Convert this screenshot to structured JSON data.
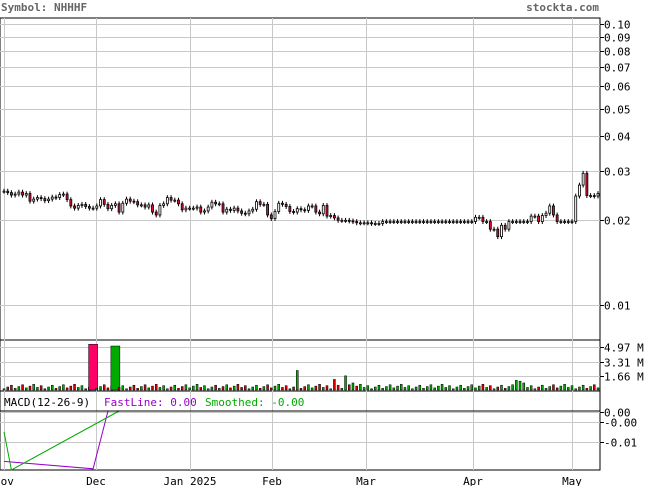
{
  "header": {
    "symbol_label": "Symbol: NHHHF",
    "site": "stockta.com"
  },
  "colors": {
    "grid": "#c8c8c8",
    "up": "#00aa00",
    "down": "#dd0000",
    "candle_up_fill": "#ffffff",
    "candle_down_fill": "#dd1133",
    "macd_hist": "#ff0066",
    "fast": "#9900cc",
    "smoothed": "#00aa00",
    "header_text": "#666666"
  },
  "macd_legend": {
    "label": "MACD(12-26-9)",
    "fast": "FastLine: 0.00",
    "smoothed": "Smoothed: -0.00"
  },
  "chart_data": [
    {
      "type": "candlestick",
      "title": "Symbol: NHHHF",
      "yscale": "log",
      "ylim": [
        0.0075,
        0.105
      ],
      "y_ticks": [
        "0.10",
        "0.09",
        "0.08",
        "0.07",
        "0.06",
        "0.05",
        "0.04",
        "0.03",
        "0.02",
        "0.01"
      ],
      "y_tick_values": [
        0.1,
        0.09,
        0.08,
        0.07,
        0.06,
        0.05,
        0.04,
        0.03,
        0.02,
        0.01
      ],
      "x_ticks": [
        "Nov",
        "Dec",
        "Jan 2025",
        "Feb",
        "Mar",
        "Apr",
        "May"
      ],
      "grid": true,
      "closes": [
        0.0254,
        0.0251,
        0.0246,
        0.0248,
        0.0252,
        0.0246,
        0.0249,
        0.0234,
        0.0238,
        0.0241,
        0.0239,
        0.0235,
        0.0238,
        0.0242,
        0.0241,
        0.0247,
        0.0248,
        0.0237,
        0.0225,
        0.0221,
        0.0226,
        0.0228,
        0.0224,
        0.0221,
        0.0221,
        0.0225,
        0.0237,
        0.0228,
        0.022,
        0.0226,
        0.0229,
        0.0214,
        0.023,
        0.0238,
        0.0234,
        0.0233,
        0.0227,
        0.0227,
        0.0223,
        0.0227,
        0.0214,
        0.0209,
        0.0226,
        0.0229,
        0.0241,
        0.0236,
        0.0236,
        0.0229,
        0.0218,
        0.0221,
        0.0221,
        0.0221,
        0.0223,
        0.0214,
        0.0216,
        0.0223,
        0.0232,
        0.0229,
        0.0229,
        0.0214,
        0.0219,
        0.0217,
        0.0221,
        0.0216,
        0.0212,
        0.0211,
        0.0216,
        0.0219,
        0.0233,
        0.0228,
        0.0228,
        0.0209,
        0.0203,
        0.0215,
        0.023,
        0.0228,
        0.0224,
        0.0215,
        0.0214,
        0.022,
        0.0218,
        0.0217,
        0.0225,
        0.0225,
        0.0214,
        0.0211,
        0.0226,
        0.0207,
        0.0208,
        0.0204,
        0.02,
        0.02,
        0.02,
        0.0199,
        0.0198,
        0.0196,
        0.0196,
        0.0196,
        0.0196,
        0.0195,
        0.0195,
        0.0195,
        0.0198,
        0.0198,
        0.0198,
        0.0198,
        0.0198,
        0.0198,
        0.0198,
        0.0198,
        0.0198,
        0.0198,
        0.0198,
        0.0198,
        0.0198,
        0.0198,
        0.0198,
        0.0198,
        0.0198,
        0.0198,
        0.0198,
        0.0198,
        0.0198,
        0.0198,
        0.0198,
        0.0198,
        0.0198,
        0.0205,
        0.0205,
        0.0198,
        0.0198,
        0.0186,
        0.0186,
        0.0175,
        0.0192,
        0.0186,
        0.0198,
        0.0198,
        0.0198,
        0.0198,
        0.0198,
        0.0198,
        0.0207,
        0.0207,
        0.0198,
        0.0208,
        0.0212,
        0.0225,
        0.0209,
        0.0198,
        0.0198,
        0.0198,
        0.0198,
        0.0198,
        0.0244,
        0.0267,
        0.0294,
        0.0245,
        0.0245,
        0.0244,
        0.0249
      ],
      "volume_ticks": [
        "4.97 M",
        "3.31 M",
        "1.66 M"
      ],
      "volume_tick_values": [
        4.97,
        3.31,
        1.66
      ],
      "volume_max": 5.5,
      "volume_big": [
        [
          24,
          5.25,
          "down"
        ],
        [
          30,
          5.05,
          "up"
        ]
      ],
      "volume_medium": [
        [
          79,
          2.3,
          "up"
        ],
        [
          89,
          1.3,
          "down"
        ],
        [
          92,
          1.7,
          "up"
        ],
        [
          94,
          0.9,
          "up"
        ],
        [
          138,
          1.2,
          "up"
        ],
        [
          139,
          1.1,
          "up"
        ],
        [
          140,
          0.9,
          "up"
        ],
        [
          201,
          1.0,
          "down"
        ]
      ],
      "macd_ticks": [
        "0.00",
        "-0.00",
        "-0.01"
      ],
      "macd_tick_values": [
        0.0,
        -0.004,
        -0.012
      ],
      "macd_ylim": [
        -0.0235,
        0.0005
      ],
      "fast_line": [
        [
          0,
          -0.02
        ],
        [
          24,
          -0.023
        ],
        [
          28,
          0.003
        ]
      ],
      "smoothed_line": [
        [
          0,
          -0.008
        ],
        [
          2,
          -0.024
        ],
        [
          31,
          0.003
        ]
      ]
    }
  ]
}
